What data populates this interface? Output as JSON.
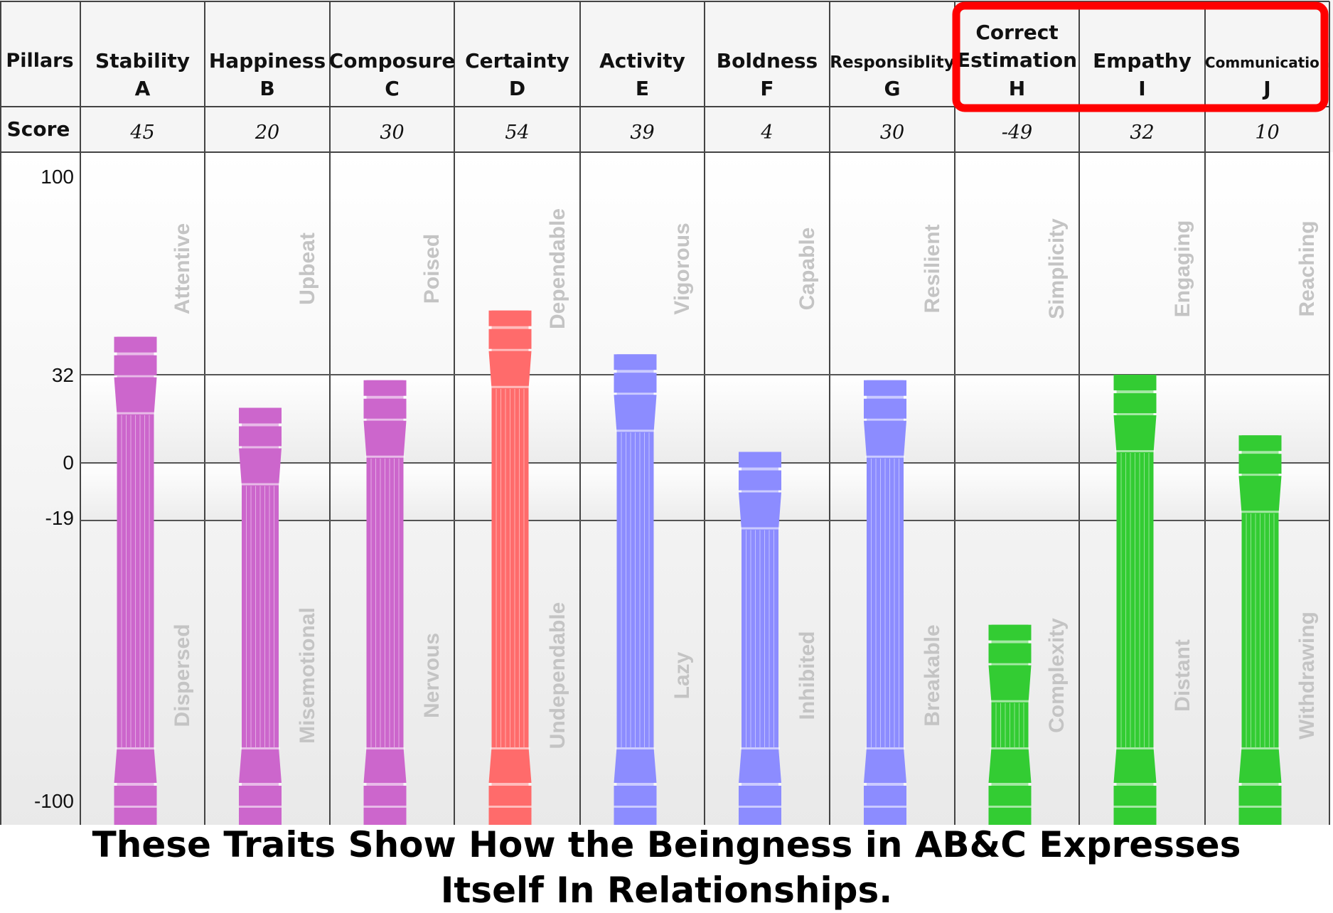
{
  "chart_data": {
    "type": "bar",
    "row_labels": {
      "header": "Pillars",
      "score": "Score"
    },
    "pillars": [
      {
        "name": "Stability",
        "letter": "A",
        "score": "45",
        "value": 45,
        "positive_trait": "Attentive",
        "negative_trait": "Dispersed",
        "color": "#cc66cc"
      },
      {
        "name": "Happiness",
        "letter": "B",
        "score": "20",
        "value": 20,
        "positive_trait": "Upbeat",
        "negative_trait": "Misemotional",
        "color": "#cc66cc"
      },
      {
        "name": "Composure",
        "letter": "C",
        "score": "30",
        "value": 30,
        "positive_trait": "Poised",
        "negative_trait": "Nervous",
        "color": "#cc66cc"
      },
      {
        "name": "Certainty",
        "letter": "D",
        "score": "54",
        "value": 54,
        "positive_trait": "Dependable",
        "negative_trait": "Undependable",
        "color": "#ff6b6b"
      },
      {
        "name": "Activity",
        "letter": "E",
        "score": "39",
        "value": 39,
        "positive_trait": "Vigorous",
        "negative_trait": "Lazy",
        "color": "#8c8cff"
      },
      {
        "name": "Boldness",
        "letter": "F",
        "score": "4",
        "value": 4,
        "positive_trait": "Capable",
        "negative_trait": "Inhibited",
        "color": "#8c8cff"
      },
      {
        "name": "Responsiblity",
        "letter": "G",
        "score": "30",
        "value": 30,
        "positive_trait": "Resilient",
        "negative_trait": "Breakable",
        "color": "#8c8cff"
      },
      {
        "name": "Correct Estimation",
        "letter": "H",
        "score": "-49",
        "value": -49,
        "positive_trait": "Simplicity",
        "negative_trait": "Complexity",
        "color": "#33cc33"
      },
      {
        "name": "Empathy",
        "letter": "I",
        "score": "32",
        "value": 32,
        "positive_trait": "Engaging",
        "negative_trait": "Distant",
        "color": "#33cc33"
      },
      {
        "name": "Communication",
        "letter": "J",
        "score": "10",
        "value": 10,
        "positive_trait": "Reaching",
        "negative_trait": "Withdrawing",
        "color": "#33cc33"
      }
    ],
    "y_ticks": [
      100,
      32,
      0,
      -19,
      -100
    ],
    "ylim": [
      -100,
      100
    ],
    "highlighted_columns": [
      "H",
      "I",
      "J"
    ],
    "highlight_color": "#ff0000",
    "title": "These Traits Show How the Beingness in AB&C Expresses Itself In Relationships.",
    "title_lines": [
      "These Traits Show How the Beingness in AB&C Expresses",
      "Itself In Relationships."
    ]
  }
}
